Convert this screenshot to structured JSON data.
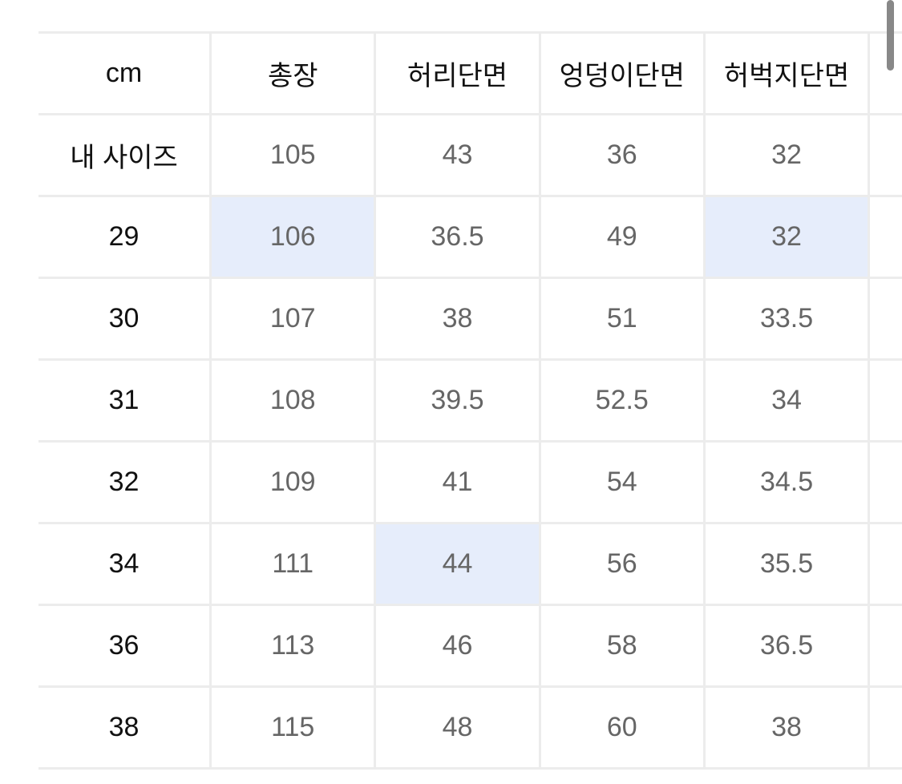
{
  "headers": [
    "cm",
    "총장",
    "허리단면",
    "엉덩이단면",
    "허벅지단면"
  ],
  "rows": [
    {
      "label": "내 사이즈",
      "values": [
        "105",
        "43",
        "36",
        "32"
      ],
      "highlight": []
    },
    {
      "label": "29",
      "values": [
        "106",
        "36.5",
        "49",
        "32"
      ],
      "highlight": [
        0,
        3
      ]
    },
    {
      "label": "30",
      "values": [
        "107",
        "38",
        "51",
        "33.5"
      ],
      "highlight": []
    },
    {
      "label": "31",
      "values": [
        "108",
        "39.5",
        "52.5",
        "34"
      ],
      "highlight": []
    },
    {
      "label": "32",
      "values": [
        "109",
        "41",
        "54",
        "34.5"
      ],
      "highlight": []
    },
    {
      "label": "34",
      "values": [
        "111",
        "44",
        "56",
        "35.5"
      ],
      "highlight": [
        1
      ]
    },
    {
      "label": "36",
      "values": [
        "113",
        "46",
        "58",
        "36.5"
      ],
      "highlight": []
    },
    {
      "label": "38",
      "values": [
        "115",
        "48",
        "60",
        "38"
      ],
      "highlight": []
    }
  ],
  "colors": {
    "highlight": "#e6edfb",
    "grid": "#ececec",
    "value_text": "#666666",
    "header_text": "#111111"
  }
}
